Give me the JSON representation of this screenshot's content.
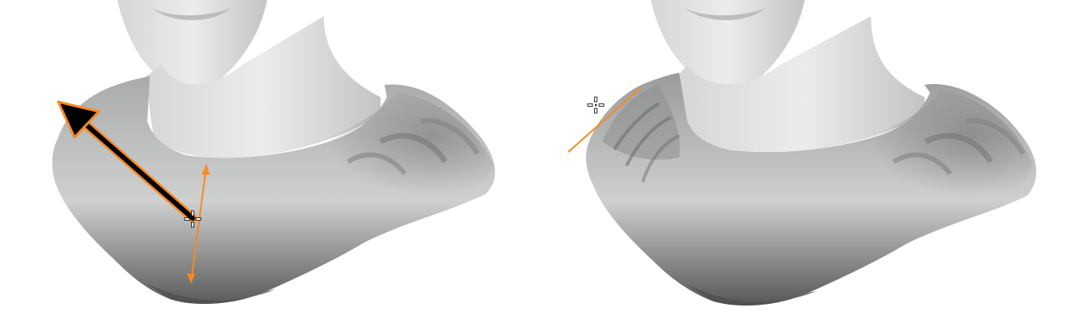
{
  "scene": {
    "background": "#ffffff",
    "panels": [
      {
        "id": "before-stroke",
        "subject": "sculpted-bust-with-draped-cloth",
        "tool": "drag-direction-arrow"
      },
      {
        "id": "after-stroke",
        "subject": "sculpted-bust-with-draped-cloth",
        "tool": "stroke-line"
      }
    ]
  },
  "colors": {
    "accent": "#f7891f",
    "arrow_fill": "#000000",
    "skin_light": "#e6e6e6",
    "skin_mid": "#cfcfcf",
    "cloth_light": "#d4d4d4",
    "cloth_dark": "#555555"
  },
  "icons": {
    "cursor": "crosshair-cursor-icon",
    "arrow": "drag-arrow-icon",
    "double_arrow": "double-headed-arrow-icon"
  }
}
